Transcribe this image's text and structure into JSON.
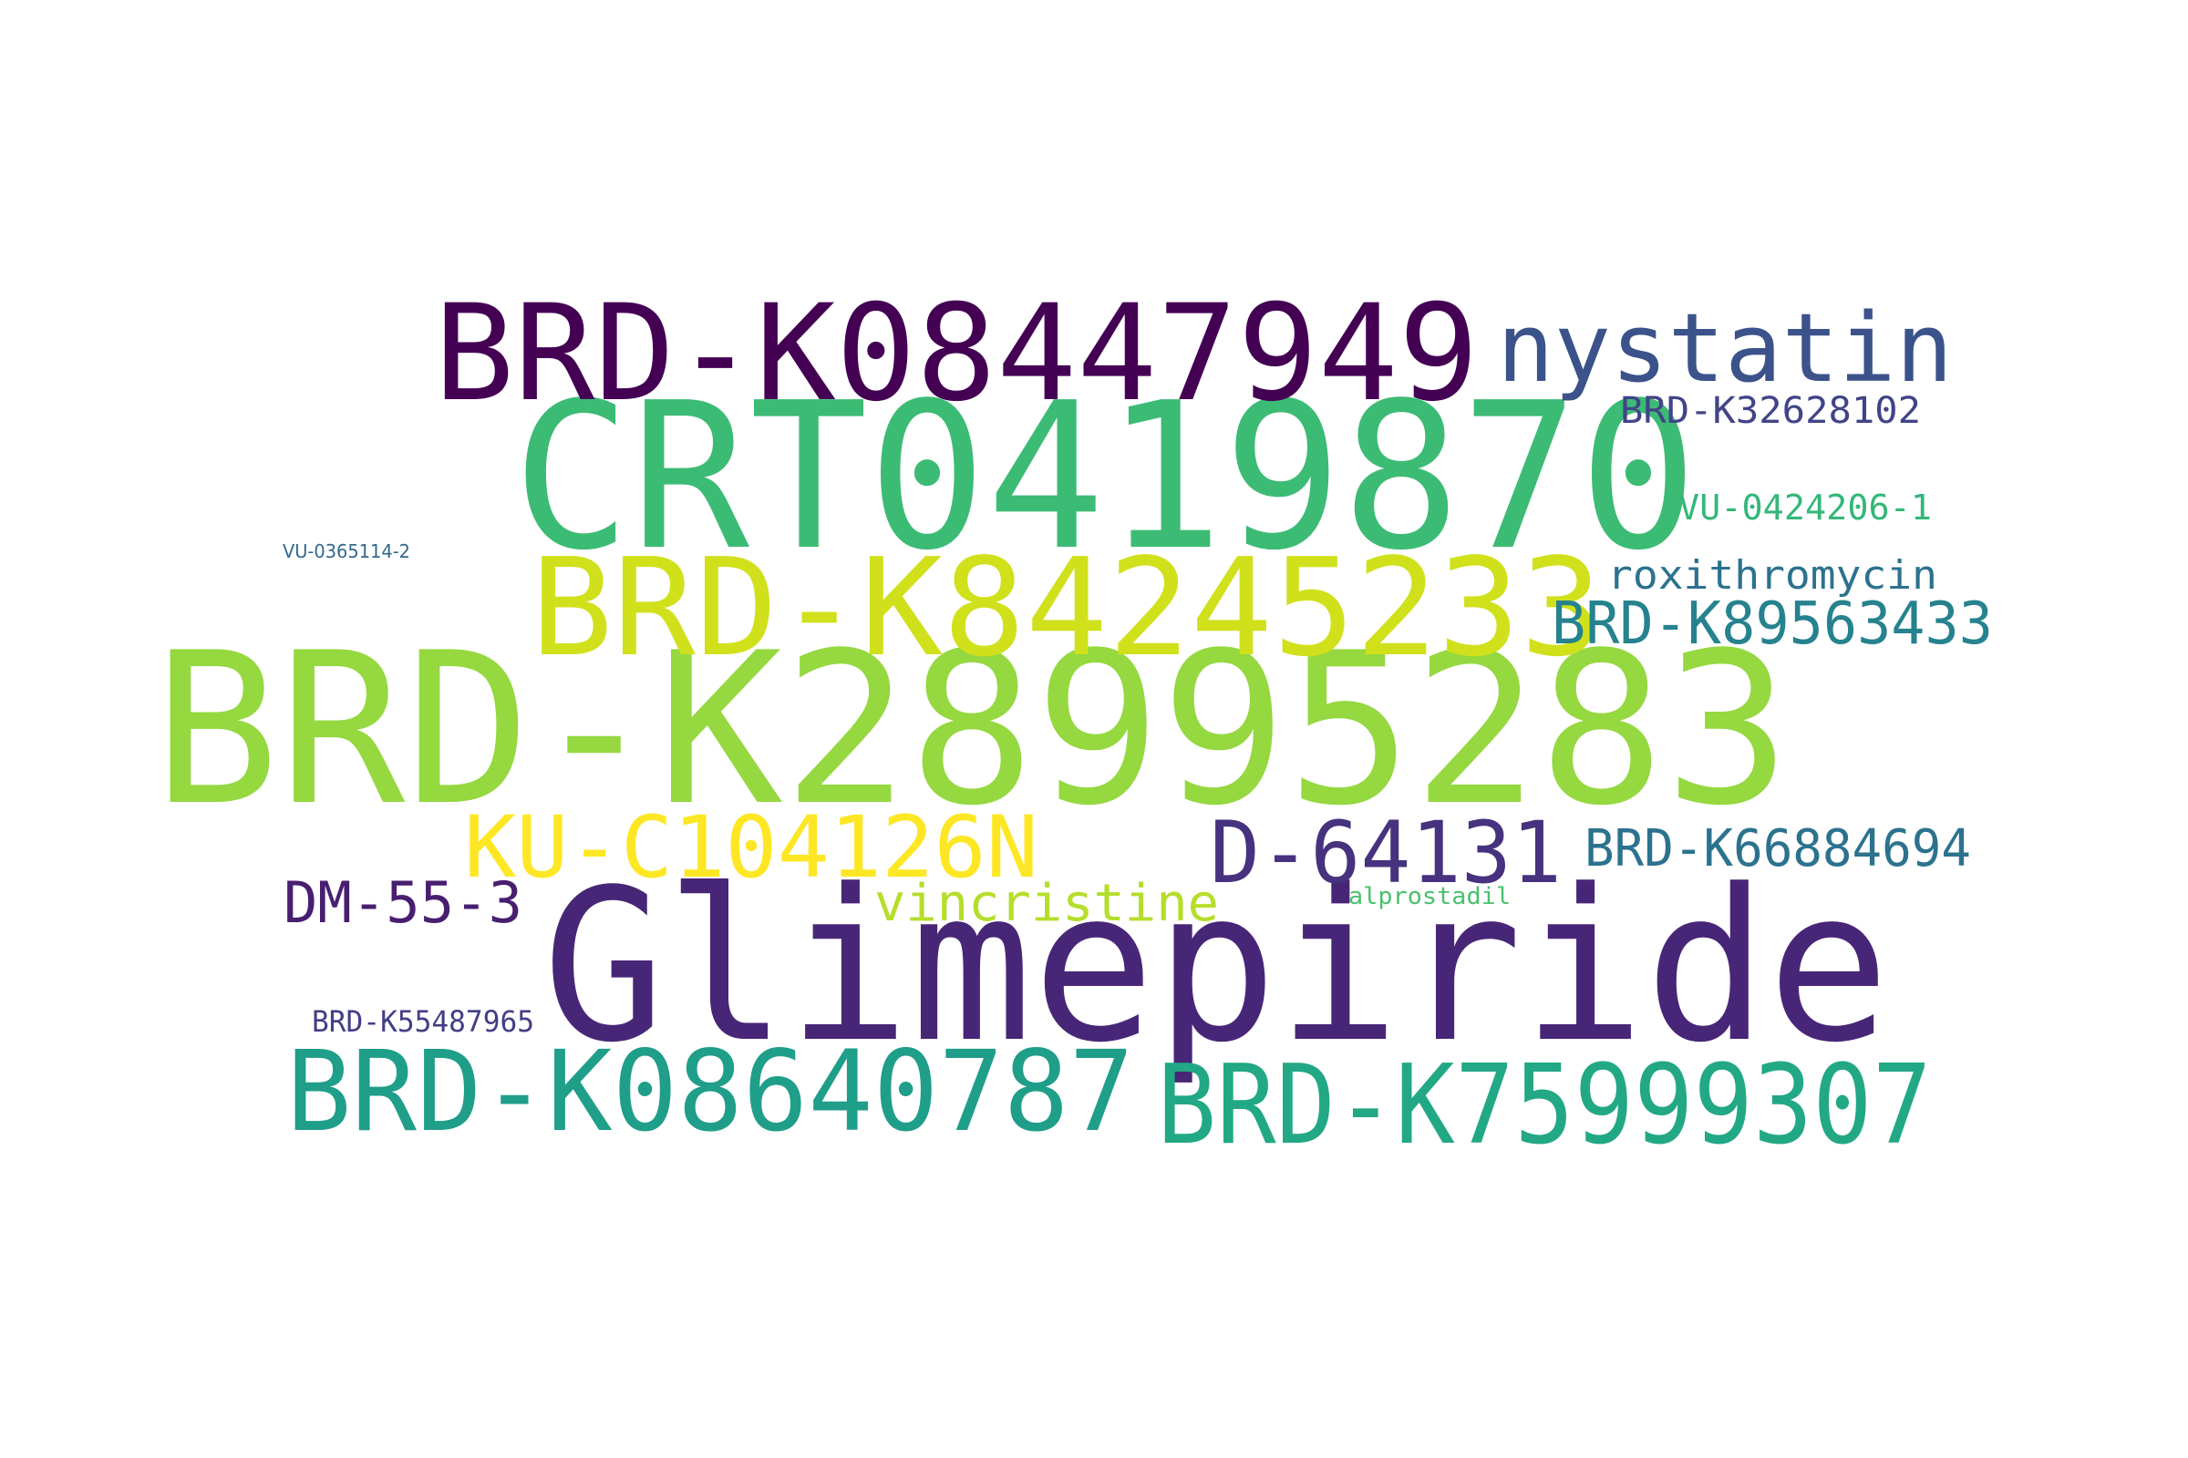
{
  "words": [
    {
      "text": "BRD-K28995283",
      "color": "#95d840"
    },
    {
      "text": "Glimepiride",
      "color": "#482677"
    },
    {
      "text": "CRT0419870",
      "color": "#3cbb75"
    },
    {
      "text": "BRD-K08447949",
      "color": "#440154"
    },
    {
      "text": "BRD-K84245233",
      "color": "#d0e11c"
    },
    {
      "text": "BRD-K08640787",
      "color": "#1f9e89"
    },
    {
      "text": "BRD-K75999307",
      "color": "#22a884"
    },
    {
      "text": "nystatin",
      "color": "#3b528b"
    },
    {
      "text": "KU-C104126N",
      "color": "#fde725"
    },
    {
      "text": "D-64131",
      "color": "#46327e"
    },
    {
      "text": "BRD-K89563433",
      "color": "#26828e"
    },
    {
      "text": "BRD-K66884694",
      "color": "#2c728e"
    },
    {
      "text": "DM-55-3",
      "color": "#481f70"
    },
    {
      "text": "vincristine",
      "color": "#b5de2b"
    },
    {
      "text": "roxithromycin",
      "color": "#2c728e"
    },
    {
      "text": "BRD-K32628102",
      "color": "#414487"
    },
    {
      "text": "VU-0424206-1",
      "color": "#35b779"
    },
    {
      "text": "BRD-K55487965",
      "color": "#433e85"
    },
    {
      "text": "alprostadil",
      "color": "#4ac16d"
    },
    {
      "text": "VU-0365114-2",
      "color": "#31688e"
    }
  ]
}
